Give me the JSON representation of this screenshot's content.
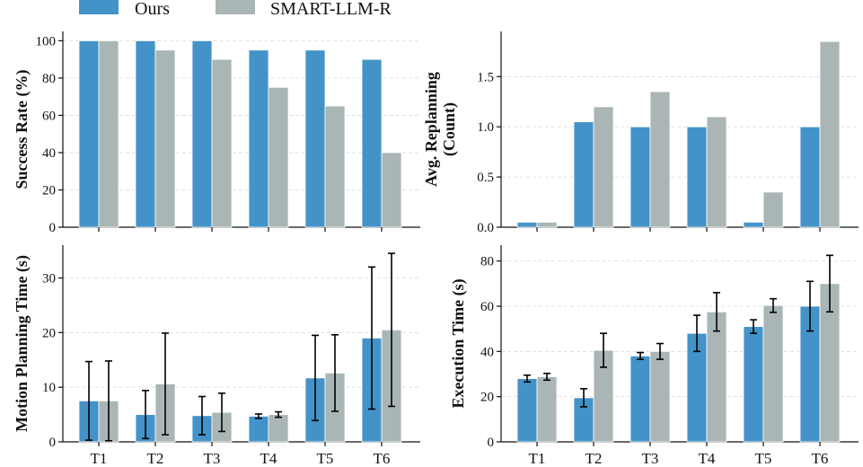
{
  "colors": {
    "ours": "#4393c8",
    "smart": "#aab6b6"
  },
  "legend": {
    "ours": "Ours",
    "smart": "SMART-LLM-R"
  },
  "chart_data": [
    {
      "id": "success",
      "type": "bar",
      "categories": [
        "T1",
        "T2",
        "T3",
        "T4",
        "T5",
        "T6"
      ],
      "ylabel": [
        "Success Rate (%)"
      ],
      "ylim": [
        0,
        105
      ],
      "yticks": [
        0,
        20,
        40,
        60,
        80,
        100
      ],
      "ytick_labels": [
        "0",
        "20",
        "40",
        "60",
        "80",
        "100"
      ],
      "series": [
        {
          "name": "Ours",
          "values": [
            100,
            100,
            100,
            95,
            95,
            90
          ]
        },
        {
          "name": "SMART-LLM-R",
          "values": [
            100,
            95,
            90,
            75,
            65,
            40
          ]
        }
      ]
    },
    {
      "id": "replanning",
      "type": "bar",
      "categories": [
        "T1",
        "T2",
        "T3",
        "T4",
        "T5",
        "T6"
      ],
      "ylabel": [
        "Avg. Replanning",
        "(Count)"
      ],
      "ylim": [
        0,
        1.95
      ],
      "yticks": [
        0,
        0.5,
        1.0,
        1.5
      ],
      "ytick_labels": [
        "0.0",
        "0.5",
        "1.0",
        "1.5"
      ],
      "series": [
        {
          "name": "Ours",
          "values": [
            0.05,
            1.05,
            1.0,
            1.0,
            0.05,
            1.0
          ]
        },
        {
          "name": "SMART-LLM-R",
          "values": [
            0.05,
            1.2,
            1.35,
            1.1,
            0.35,
            1.85
          ]
        }
      ]
    },
    {
      "id": "motion",
      "type": "bar",
      "categories": [
        "T1",
        "T2",
        "T3",
        "T4",
        "T5",
        "T6"
      ],
      "ylabel": [
        "Motion Planning Time (s)"
      ],
      "ylim": [
        0,
        36
      ],
      "yticks": [
        0,
        10,
        20,
        30
      ],
      "ytick_labels": [
        "0",
        "10",
        "20",
        "30"
      ],
      "series": [
        {
          "name": "Ours",
          "values": [
            7.5,
            5.0,
            4.8,
            4.7,
            11.7,
            19.0
          ],
          "errors": [
            7.2,
            4.4,
            3.5,
            0.4,
            7.8,
            13.0
          ]
        },
        {
          "name": "SMART-LLM-R",
          "values": [
            7.5,
            10.6,
            5.4,
            5.0,
            12.6,
            20.5
          ],
          "errors": [
            7.3,
            9.3,
            3.5,
            0.5,
            7.0,
            14.0
          ]
        }
      ]
    },
    {
      "id": "execution",
      "type": "bar",
      "categories": [
        "T1",
        "T2",
        "T3",
        "T4",
        "T5",
        "T6"
      ],
      "ylabel": [
        "Execution Time (s)"
      ],
      "ylim": [
        0,
        87
      ],
      "yticks": [
        0,
        20,
        40,
        60,
        80
      ],
      "ytick_labels": [
        "0",
        "20",
        "40",
        "60",
        "80"
      ],
      "series": [
        {
          "name": "Ours",
          "values": [
            28,
            19.5,
            38,
            48,
            51,
            60
          ],
          "errors": [
            1.5,
            4,
            1.5,
            8,
            3,
            11
          ]
        },
        {
          "name": "SMART-LLM-R",
          "values": [
            28.8,
            40.5,
            40,
            57.5,
            60.3,
            70
          ],
          "errors": [
            1.5,
            7.5,
            3.5,
            8.5,
            3,
            12.5
          ]
        }
      ]
    }
  ]
}
